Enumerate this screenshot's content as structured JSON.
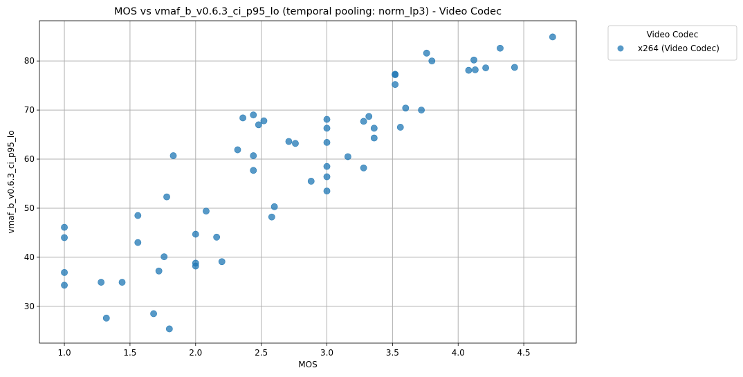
{
  "chart_data": {
    "type": "scatter",
    "title": "MOS vs vmaf_b_v0.6.3_ci_p95_lo (temporal pooling: norm_lp3) - Video Codec",
    "xlabel": "MOS",
    "ylabel": "vmaf_b_v0.6.3_ci_p95_lo",
    "xlim": [
      0.81,
      4.9
    ],
    "ylim": [
      22.5,
      88.2
    ],
    "xticks": [
      1.0,
      1.5,
      2.0,
      2.5,
      3.0,
      3.5,
      4.0,
      4.5
    ],
    "xtick_labels": [
      "1.0",
      "1.5",
      "2.0",
      "2.5",
      "3.0",
      "3.5",
      "4.0",
      "4.5"
    ],
    "yticks": [
      30,
      40,
      50,
      60,
      70,
      80
    ],
    "ytick_labels": [
      "30",
      "40",
      "50",
      "60",
      "70",
      "80"
    ],
    "grid": true,
    "legend": {
      "title": "Video Codec",
      "placement": "outside-top-right",
      "entries": [
        "x264 (Video Codec)"
      ]
    },
    "series": [
      {
        "name": "x264 (Video Codec)",
        "color": "#1f77b4",
        "points": [
          [
            1.0,
            46.1
          ],
          [
            1.0,
            44.0
          ],
          [
            1.0,
            36.9
          ],
          [
            1.0,
            34.3
          ],
          [
            1.28,
            34.9
          ],
          [
            1.32,
            27.6
          ],
          [
            1.44,
            34.9
          ],
          [
            1.56,
            48.5
          ],
          [
            1.56,
            43.0
          ],
          [
            1.68,
            28.5
          ],
          [
            1.72,
            37.2
          ],
          [
            1.76,
            40.1
          ],
          [
            1.78,
            52.3
          ],
          [
            1.8,
            25.4
          ],
          [
            1.83,
            60.7
          ],
          [
            2.0,
            44.7
          ],
          [
            2.0,
            38.8
          ],
          [
            2.0,
            38.2
          ],
          [
            2.08,
            49.4
          ],
          [
            2.16,
            44.1
          ],
          [
            2.2,
            39.1
          ],
          [
            2.32,
            61.9
          ],
          [
            2.36,
            68.4
          ],
          [
            2.44,
            69.0
          ],
          [
            2.44,
            60.7
          ],
          [
            2.44,
            57.7
          ],
          [
            2.48,
            67.0
          ],
          [
            2.52,
            67.8
          ],
          [
            2.58,
            48.2
          ],
          [
            2.6,
            50.3
          ],
          [
            2.71,
            63.6
          ],
          [
            2.76,
            63.2
          ],
          [
            2.88,
            55.5
          ],
          [
            3.0,
            68.1
          ],
          [
            3.0,
            66.3
          ],
          [
            3.0,
            63.4
          ],
          [
            3.0,
            58.5
          ],
          [
            3.0,
            56.4
          ],
          [
            3.0,
            53.5
          ],
          [
            3.16,
            60.5
          ],
          [
            3.28,
            67.7
          ],
          [
            3.28,
            58.2
          ],
          [
            3.32,
            68.7
          ],
          [
            3.36,
            66.3
          ],
          [
            3.36,
            64.3
          ],
          [
            3.52,
            77.3
          ],
          [
            3.52,
            77.2
          ],
          [
            3.52,
            75.2
          ],
          [
            3.56,
            66.5
          ],
          [
            3.6,
            70.4
          ],
          [
            3.72,
            70.0
          ],
          [
            3.76,
            81.6
          ],
          [
            3.8,
            80.0
          ],
          [
            4.08,
            78.1
          ],
          [
            4.12,
            80.2
          ],
          [
            4.13,
            78.2
          ],
          [
            4.21,
            78.6
          ],
          [
            4.32,
            82.6
          ],
          [
            4.43,
            78.7
          ],
          [
            4.72,
            84.9
          ]
        ]
      }
    ]
  }
}
